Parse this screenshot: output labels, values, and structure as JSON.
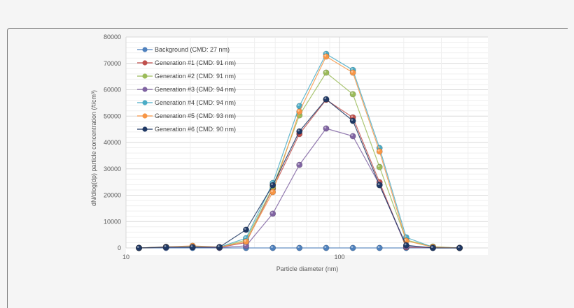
{
  "chart_data": {
    "type": "line",
    "title": "",
    "xlabel": "Particle diameter (nm)",
    "ylabel": "dN/dlog(dp) particle concentration (#/cm³)",
    "xscale": "log",
    "xlim": [
      10,
      450
    ],
    "ylim": [
      0,
      80000
    ],
    "y_ticks": [
      0,
      10000,
      20000,
      30000,
      40000,
      50000,
      60000,
      70000,
      80000
    ],
    "x_ticks": [
      10,
      100
    ],
    "grid": true,
    "legend_position": "upper-left-inside",
    "x": [
      11.5,
      15.4,
      20.5,
      27.4,
      36.5,
      48.7,
      64.9,
      86.6,
      115.5,
      154.0,
      205.4,
      273.8,
      365.2
    ],
    "series": [
      {
        "name": "Background (CMD: 27 nm)",
        "color": "#4f81bd",
        "values": [
          0,
          0,
          0,
          0,
          0,
          0,
          0,
          0,
          0,
          0,
          0,
          0,
          0
        ]
      },
      {
        "name": "Generation #1 (CMD: 91 nm)",
        "color": "#c0504d",
        "values": [
          0,
          300,
          400,
          200,
          2000,
          22500,
          43200,
          56200,
          49500,
          24900,
          300,
          100,
          0
        ]
      },
      {
        "name": "Generation #2 (CMD: 91 nm)",
        "color": "#9bbb59",
        "values": [
          0,
          300,
          400,
          200,
          3000,
          23000,
          50300,
          66500,
          58300,
          30700,
          3000,
          500,
          0
        ]
      },
      {
        "name": "Generation #3 (CMD: 94 nm)",
        "color": "#8064a2",
        "values": [
          0,
          200,
          300,
          100,
          800,
          13000,
          31500,
          45300,
          42400,
          24000,
          500,
          100,
          0
        ]
      },
      {
        "name": "Generation #4 (CMD: 94 nm)",
        "color": "#4bacc6",
        "values": [
          0,
          400,
          500,
          300,
          3700,
          24600,
          53800,
          73600,
          67500,
          37900,
          4000,
          300,
          0
        ]
      },
      {
        "name": "Generation #5 (CMD: 93 nm)",
        "color": "#f79646",
        "values": [
          0,
          400,
          800,
          300,
          2400,
          21200,
          51700,
          72600,
          66500,
          36600,
          2700,
          300,
          0
        ]
      },
      {
        "name": "Generation #6 (CMD: 90 nm)",
        "color": "#1f3864",
        "values": [
          0,
          300,
          300,
          300,
          6900,
          23800,
          44200,
          56400,
          48200,
          23800,
          1000,
          0,
          0
        ]
      }
    ]
  },
  "axes": {
    "y_tick_labels": [
      "0",
      "10000",
      "20000",
      "30000",
      "40000",
      "50000",
      "60000",
      "70000",
      "80000"
    ],
    "x_tick_labels": [
      "10",
      "100"
    ]
  }
}
